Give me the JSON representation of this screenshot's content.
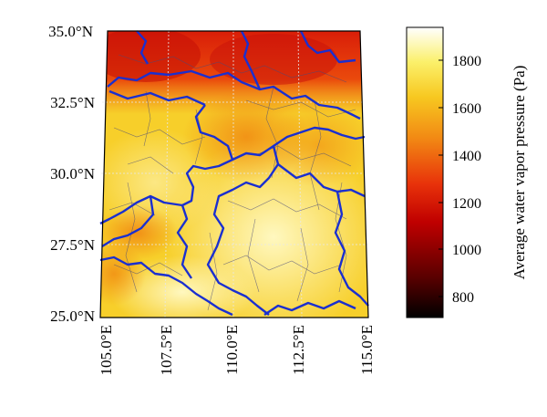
{
  "map": {
    "latitude_labels": [
      "35.0°N",
      "32.5°N",
      "30.0°N",
      "27.5°N",
      "25.0°N"
    ],
    "longitude_labels": [
      "105.0°E",
      "107.5°E",
      "110.0°E",
      "112.5°E",
      "115.0°E"
    ],
    "lat_range": [
      25.0,
      35.0
    ],
    "lon_range": [
      105.0,
      115.0
    ],
    "graticule": true,
    "boundary_color": "#1a2fd0",
    "county_line_color": "#4a4a7a"
  },
  "colorbar": {
    "title": "Average water vapor pressure (Pa)",
    "tick_labels": [
      "800",
      "1000",
      "1200",
      "1400",
      "1600",
      "1800"
    ],
    "range": [
      720,
      1950
    ],
    "colormap": [
      "#000000",
      "#5a0000",
      "#c00000",
      "#e8320a",
      "#f28a14",
      "#f7c820",
      "#fbf06a",
      "#ffffff"
    ]
  }
}
